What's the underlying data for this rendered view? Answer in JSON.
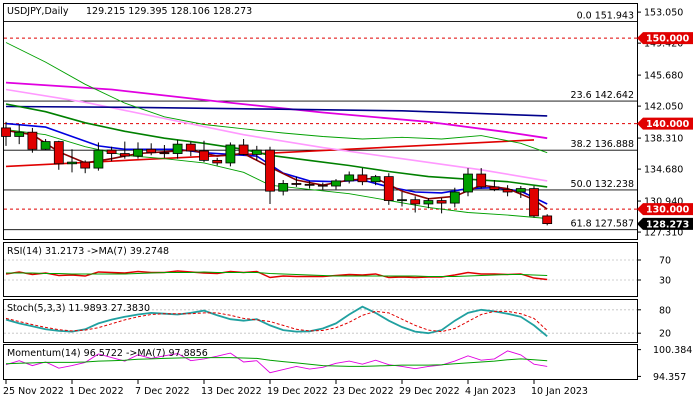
{
  "chart_data": {
    "type": "candlestick",
    "symbol_label": "USDJPY,Daily",
    "ohlc_label": "129.215 129.395 128.106 128.273",
    "price_axis": {
      "range": [
        126.5,
        154.0
      ],
      "ticks": [
        "153.050",
        "149.420",
        "145.680",
        "142.050",
        "138.310",
        "134.680",
        "130.940",
        "127.310"
      ],
      "tick_values": [
        153.05,
        149.42,
        145.68,
        142.05,
        138.31,
        134.68,
        130.94,
        127.31
      ]
    },
    "x_axis": {
      "ticks": [
        "25 Nov 2022",
        "1 Dec 2022",
        "7 Dec 2022",
        "13 Dec 2022",
        "19 Dec 2022",
        "23 Dec 2022",
        "29 Dec 2022",
        "4 Jan 2023",
        "10 Jan 2023"
      ],
      "tick_bar_index": [
        0,
        5,
        10,
        15,
        20,
        25,
        30,
        35,
        40
      ]
    },
    "badges": [
      {
        "label": "150.000",
        "value": 150.0,
        "color": "#e00000"
      },
      {
        "label": "140.000",
        "value": 140.0,
        "color": "#e00000"
      },
      {
        "label": "130.000",
        "value": 130.0,
        "color": "#e00000"
      },
      {
        "label": "128.273",
        "value": 128.273,
        "color": "#000000"
      }
    ],
    "levels": [
      {
        "label": "0.0 151.943",
        "value": 151.943,
        "color": "#000000",
        "style": "solid"
      },
      {
        "label": "",
        "value": 150.0,
        "color": "#e00000",
        "style": "dashed"
      },
      {
        "label": "23.6 142.642",
        "value": 142.642,
        "color": "#000000",
        "style": "solid"
      },
      {
        "label": "",
        "value": 140.0,
        "color": "#e00000",
        "style": "dashed"
      },
      {
        "label": "38.2 136.888",
        "value": 136.888,
        "color": "#000000",
        "style": "solid"
      },
      {
        "label": "50.0 132.238",
        "value": 132.238,
        "color": "#000000",
        "style": "solid"
      },
      {
        "label": "",
        "value": 130.0,
        "color": "#e00000",
        "style": "dashed"
      },
      {
        "label": "61.8 127.587",
        "value": 127.587,
        "color": "#000000",
        "style": "solid"
      }
    ],
    "candles": [
      [
        139.5,
        140.2,
        137.4,
        138.5
      ],
      [
        138.5,
        139.9,
        137.6,
        139.0
      ],
      [
        139.0,
        139.5,
        136.6,
        137.0
      ],
      [
        137.0,
        138.2,
        136.9,
        137.9
      ],
      [
        137.9,
        138.0,
        134.6,
        135.3
      ],
      [
        135.3,
        137.0,
        134.3,
        135.5
      ],
      [
        135.5,
        135.7,
        134.2,
        134.8
      ],
      [
        134.8,
        137.8,
        134.5,
        136.9
      ],
      [
        136.9,
        137.3,
        135.6,
        136.5
      ],
      [
        136.5,
        137.9,
        135.9,
        136.2
      ],
      [
        136.2,
        137.8,
        135.9,
        137.0
      ],
      [
        137.0,
        137.7,
        136.3,
        136.6
      ],
      [
        136.6,
        137.5,
        136.0,
        136.5
      ],
      [
        136.5,
        138.1,
        135.9,
        137.6
      ],
      [
        137.6,
        137.9,
        136.2,
        136.8
      ],
      [
        136.8,
        138.0,
        135.5,
        135.7
      ],
      [
        135.7,
        136.0,
        135.1,
        135.4
      ],
      [
        135.4,
        137.8,
        135.0,
        137.5
      ],
      [
        137.5,
        138.2,
        136.3,
        136.4
      ],
      [
        136.4,
        137.4,
        135.7,
        136.9
      ],
      [
        136.9,
        137.3,
        130.6,
        132.1
      ],
      [
        132.1,
        133.4,
        131.6,
        133.0
      ],
      [
        133.0,
        133.8,
        132.6,
        132.9
      ],
      [
        132.9,
        133.3,
        132.4,
        132.8
      ],
      [
        132.8,
        133.1,
        132.3,
        132.7
      ],
      [
        132.7,
        133.5,
        132.3,
        133.3
      ],
      [
        133.3,
        134.4,
        133.0,
        134.0
      ],
      [
        134.0,
        134.8,
        132.8,
        133.2
      ],
      [
        133.2,
        134.0,
        132.8,
        133.8
      ],
      [
        133.8,
        134.2,
        130.5,
        131.0
      ],
      [
        131.0,
        132.0,
        130.3,
        131.1
      ],
      [
        131.1,
        131.5,
        129.6,
        130.6
      ],
      [
        130.6,
        131.3,
        130.1,
        131.0
      ],
      [
        131.0,
        131.3,
        129.5,
        130.7
      ],
      [
        130.7,
        132.5,
        130.2,
        132.0
      ],
      [
        132.0,
        134.8,
        131.5,
        134.1
      ],
      [
        134.1,
        134.8,
        132.4,
        132.6
      ],
      [
        132.6,
        133.4,
        132.1,
        132.3
      ],
      [
        132.3,
        132.8,
        131.5,
        132.0
      ],
      [
        132.0,
        132.7,
        131.3,
        132.4
      ],
      [
        132.4,
        132.7,
        129.0,
        129.2
      ],
      [
        129.2,
        129.4,
        128.1,
        128.3
      ]
    ],
    "price_lines": [
      {
        "color": "#e00000",
        "width": 1.6,
        "points": [
          [
            0,
            135.0
          ],
          [
            40,
            138.1
          ]
        ]
      },
      {
        "color": "#e000e0",
        "width": 1.8,
        "points": [
          [
            0,
            144.8
          ],
          [
            8,
            144.0
          ],
          [
            16,
            142.6
          ],
          [
            24,
            141.3
          ],
          [
            32,
            140.2
          ],
          [
            38,
            139.0
          ],
          [
            41,
            138.3
          ]
        ]
      },
      {
        "color": "#ff99ff",
        "width": 1.6,
        "points": [
          [
            0,
            144.0
          ],
          [
            6,
            142.5
          ],
          [
            12,
            140.6
          ],
          [
            18,
            138.7
          ],
          [
            24,
            137.2
          ],
          [
            30,
            135.9
          ],
          [
            36,
            134.6
          ],
          [
            41,
            133.3
          ]
        ]
      },
      {
        "color": "#00008b",
        "width": 1.6,
        "points": [
          [
            0,
            142.0
          ],
          [
            10,
            141.9
          ],
          [
            20,
            141.7
          ],
          [
            30,
            141.5
          ],
          [
            41,
            140.9
          ]
        ]
      },
      {
        "color": "#00a000",
        "width": 0.9,
        "points": [
          [
            0,
            149.5
          ],
          [
            3,
            147.2
          ],
          [
            6,
            144.6
          ],
          [
            9,
            142.4
          ],
          [
            12,
            140.8
          ],
          [
            15,
            139.9
          ],
          [
            18,
            139.4
          ],
          [
            21,
            138.9
          ],
          [
            24,
            138.5
          ],
          [
            27,
            138.2
          ],
          [
            30,
            138.4
          ],
          [
            33,
            138.2
          ],
          [
            36,
            138.6
          ],
          [
            39,
            137.7
          ],
          [
            41,
            136.6
          ]
        ]
      },
      {
        "color": "#00a000",
        "width": 0.9,
        "points": [
          [
            0,
            139.3
          ],
          [
            3,
            138.7
          ],
          [
            6,
            137.3
          ],
          [
            9,
            136.3
          ],
          [
            12,
            135.9
          ],
          [
            15,
            135.4
          ],
          [
            18,
            134.3
          ],
          [
            20,
            132.8
          ],
          [
            23,
            132.3
          ],
          [
            26,
            131.8
          ],
          [
            29,
            131.0
          ],
          [
            32,
            130.2
          ],
          [
            35,
            129.6
          ],
          [
            38,
            129.3
          ],
          [
            41,
            128.9
          ]
        ]
      },
      {
        "color": "#008000",
        "width": 1.6,
        "points": [
          [
            0,
            142.3
          ],
          [
            3,
            141.4
          ],
          [
            6,
            140.1
          ],
          [
            9,
            139.1
          ],
          [
            12,
            138.3
          ],
          [
            15,
            137.7
          ],
          [
            18,
            137.0
          ],
          [
            20,
            136.3
          ],
          [
            23,
            135.7
          ],
          [
            26,
            135.1
          ],
          [
            29,
            134.4
          ],
          [
            32,
            133.8
          ],
          [
            35,
            133.5
          ],
          [
            38,
            133.2
          ],
          [
            41,
            132.6
          ]
        ]
      },
      {
        "color": "#0000e0",
        "width": 1.6,
        "points": [
          [
            0,
            140.0
          ],
          [
            3,
            139.6
          ],
          [
            5,
            138.5
          ],
          [
            7,
            137.4
          ],
          [
            9,
            137.0
          ],
          [
            11,
            137.0
          ],
          [
            13,
            137.0
          ],
          [
            15,
            136.6
          ],
          [
            17,
            136.4
          ],
          [
            19,
            136.2
          ],
          [
            21,
            134.2
          ],
          [
            23,
            133.3
          ],
          [
            25,
            133.2
          ],
          [
            27,
            133.4
          ],
          [
            29,
            132.6
          ],
          [
            31,
            132.0
          ],
          [
            33,
            131.9
          ],
          [
            35,
            132.4
          ],
          [
            37,
            132.5
          ],
          [
            39,
            132.1
          ],
          [
            41,
            130.6
          ]
        ]
      },
      {
        "color": "#8b0000",
        "width": 1.6,
        "points": [
          [
            0,
            139.2
          ],
          [
            2,
            138.7
          ],
          [
            4,
            136.7
          ],
          [
            6,
            135.4
          ],
          [
            8,
            135.9
          ],
          [
            10,
            136.5
          ],
          [
            12,
            136.7
          ],
          [
            14,
            136.9
          ],
          [
            16,
            136.2
          ],
          [
            18,
            136.5
          ],
          [
            20,
            134.9
          ],
          [
            22,
            133.4
          ],
          [
            24,
            132.8
          ],
          [
            26,
            133.4
          ],
          [
            28,
            133.6
          ],
          [
            30,
            132.1
          ],
          [
            32,
            131.2
          ],
          [
            34,
            131.5
          ],
          [
            36,
            132.8
          ],
          [
            38,
            132.4
          ],
          [
            40,
            131.1
          ],
          [
            41,
            130.0
          ]
        ]
      }
    ],
    "rsi": {
      "label": "RSI(14) 31.2173  ->MA(7) 39.2748",
      "range": [
        0,
        100
      ],
      "ticks": [
        "70",
        "30"
      ],
      "tick_values": [
        70,
        30
      ],
      "series": [
        {
          "color": "#e00000",
          "width": 1.4,
          "values": [
            42,
            46,
            41,
            44,
            39,
            40,
            38,
            46,
            45,
            44,
            47,
            45,
            45,
            48,
            46,
            44,
            43,
            47,
            45,
            47,
            35,
            38,
            37,
            37,
            37,
            39,
            41,
            40,
            42,
            35,
            36,
            35,
            36,
            36,
            40,
            45,
            42,
            42,
            41,
            42,
            34,
            31
          ]
        },
        {
          "color": "#00a000",
          "width": 1.0,
          "values": [
            44,
            44,
            44,
            43,
            43,
            42,
            42,
            42,
            42,
            42,
            43,
            44,
            45,
            45,
            45,
            46,
            45,
            45,
            45,
            45,
            43,
            42,
            41,
            40,
            39,
            38,
            38,
            38,
            38,
            38,
            38,
            38,
            37,
            37,
            37,
            38,
            39,
            40,
            41,
            41,
            40,
            39
          ]
        }
      ]
    },
    "stoch": {
      "label": "Stoch(5,3,3) 11.9893 27.3830",
      "range": [
        0,
        100
      ],
      "ticks": [
        "80",
        "20"
      ],
      "tick_values": [
        80,
        20
      ],
      "series": [
        {
          "color": "#20a0a0",
          "width": 1.8,
          "values": [
            55,
            45,
            38,
            30,
            26,
            24,
            30,
            45,
            55,
            62,
            68,
            72,
            70,
            68,
            72,
            78,
            66,
            56,
            52,
            56,
            40,
            28,
            24,
            25,
            32,
            45,
            68,
            88,
            72,
            52,
            36,
            24,
            20,
            28,
            52,
            72,
            80,
            76,
            70,
            62,
            40,
            12
          ]
        },
        {
          "color": "#e00000",
          "width": 1.0,
          "dashed": true,
          "values": [
            58,
            50,
            42,
            35,
            29,
            26,
            28,
            34,
            44,
            54,
            62,
            68,
            70,
            70,
            70,
            72,
            72,
            66,
            58,
            54,
            50,
            40,
            30,
            26,
            27,
            34,
            48,
            66,
            76,
            72,
            56,
            40,
            28,
            24,
            32,
            50,
            68,
            76,
            76,
            70,
            58,
            27
          ]
        }
      ]
    },
    "momentum": {
      "label": "Momentum(14) 96.5722  ->MA(7) 97.8856",
      "range": [
        94.0,
        101.2
      ],
      "ticks": [
        "100.384",
        "94.357"
      ],
      "tick_values": [
        100.384,
        94.357
      ],
      "series": [
        {
          "color": "#e000e0",
          "width": 0.9,
          "values": [
            97.0,
            97.9,
            96.8,
            97.6,
            96.2,
            96.8,
            97.5,
            99.4,
            98.6,
            97.8,
            99.2,
            98.4,
            99.0,
            99.5,
            97.9,
            98.3,
            98.9,
            99.6,
            97.6,
            97.9,
            95.2,
            95.9,
            96.6,
            96.0,
            96.4,
            97.3,
            97.8,
            97.1,
            98.0,
            97.0,
            96.6,
            96.1,
            96.6,
            96.9,
            97.8,
            99.0,
            98.0,
            98.3,
            100.1,
            99.2,
            97.1,
            96.6
          ]
        },
        {
          "color": "#00a000",
          "width": 1.0,
          "values": [
            97.2,
            97.3,
            97.4,
            97.5,
            97.5,
            97.5,
            97.6,
            97.8,
            97.9,
            98.0,
            98.2,
            98.3,
            98.4,
            98.5,
            98.6,
            98.6,
            98.6,
            98.6,
            98.5,
            98.4,
            98.0,
            97.7,
            97.4,
            97.1,
            96.8,
            96.7,
            96.6,
            96.6,
            96.7,
            96.8,
            96.9,
            96.9,
            96.9,
            97.0,
            97.2,
            97.4,
            97.6,
            97.8,
            98.1,
            98.3,
            98.1,
            97.9
          ]
        }
      ]
    }
  }
}
